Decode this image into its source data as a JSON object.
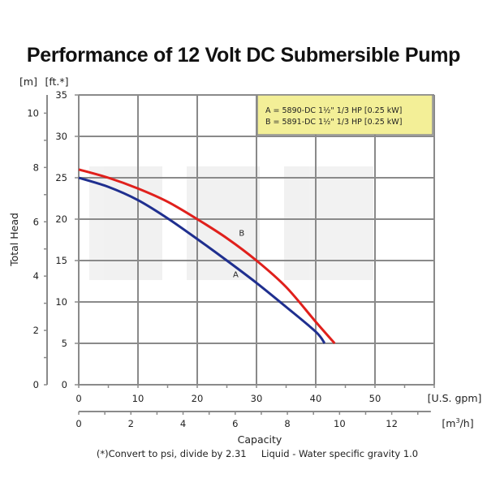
{
  "chart_data": {
    "type": "line",
    "title": "Performance of 12 Volt DC Submersible Pump",
    "xlabel": "Capacity",
    "ylabel": "Total Head",
    "x_primary": {
      "unit_label": "[U.S. gpm]",
      "range": [
        0,
        60
      ],
      "ticks": [
        0,
        10,
        20,
        30,
        40,
        50
      ],
      "tick_labels": [
        "0",
        "10",
        "20",
        "30",
        "40",
        "50"
      ]
    },
    "x_secondary": {
      "unit_label": "[m³/h]",
      "unit_base": "[m",
      "unit_sup": "3",
      "unit_tail": "/h]",
      "range": [
        0,
        13.63
      ],
      "ticks": [
        0,
        2,
        4,
        6,
        8,
        10,
        12
      ],
      "tick_labels": [
        "0",
        "2",
        "4",
        "6",
        "8",
        "10",
        "12"
      ],
      "minor_step": 1,
      "axis_max": 13.5
    },
    "y_primary": {
      "unit_label": "[ft.*]",
      "range": [
        0,
        35
      ],
      "ticks": [
        0,
        5,
        10,
        15,
        20,
        25,
        30,
        35
      ],
      "tick_labels": [
        "0",
        "5",
        "10",
        "15",
        "20",
        "25",
        "30",
        "35"
      ]
    },
    "y_secondary": {
      "unit_label": "[m]",
      "range": [
        0,
        10.67
      ],
      "ticks": [
        0,
        2,
        4,
        6,
        8,
        10
      ],
      "tick_labels": [
        "0",
        "2",
        "4",
        "6",
        "8",
        "10"
      ],
      "minor_step": 1
    },
    "grid": true,
    "legend": {
      "placement": "top-right",
      "entries": [
        "A = 5890-DC 1½\" 1/3 HP [0.25 kW]",
        "B = 5891-DC 1½\" 1/3 HP [0.25 kW]"
      ]
    },
    "series": [
      {
        "name": "A",
        "label": "A",
        "color": "#1f2f8f",
        "x": [
          0,
          5,
          10,
          15,
          20,
          25,
          30,
          35,
          40,
          41.5
        ],
        "y": [
          25,
          23.9,
          22.3,
          20.1,
          17.6,
          15,
          12.3,
          9.4,
          6.4,
          5
        ],
        "label_at": [
          26.5,
          13
        ]
      },
      {
        "name": "B",
        "label": "B",
        "color": "#e0201c",
        "x": [
          0,
          5,
          10,
          15,
          20,
          25,
          30,
          35,
          40,
          43.2
        ],
        "y": [
          26,
          25,
          23.7,
          22.1,
          20,
          17.7,
          15,
          11.8,
          7.6,
          5
        ],
        "label_at": [
          27.5,
          18
        ]
      }
    ],
    "footnote": "(*)Convert to psi, divide by 2.31     Liquid - Water specific gravity 1.0",
    "colors": {
      "grid": "#8a8a8a",
      "legend_bg": "#f3ef97",
      "axis": "#8a8a8a"
    }
  }
}
